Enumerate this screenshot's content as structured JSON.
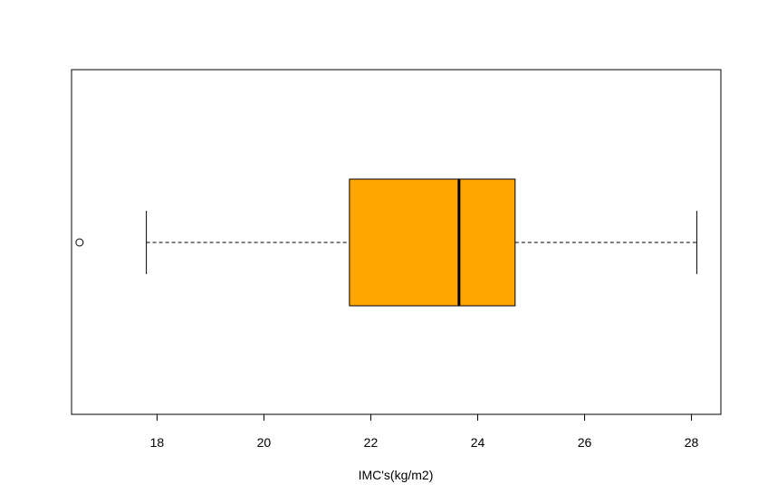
{
  "chart_data": {
    "type": "boxplot",
    "orientation": "horizontal",
    "xlabel": "IMC's(kg/m2)",
    "xlim": [
      16.4,
      28.55
    ],
    "ticks": [
      18,
      20,
      22,
      24,
      26,
      28
    ],
    "tick_labels": [
      "18",
      "20",
      "22",
      "24",
      "26",
      "28"
    ],
    "boxes": [
      {
        "whisker_low": 17.8,
        "q1": 21.6,
        "median": 23.65,
        "q3": 24.7,
        "whisker_high": 28.1,
        "outliers": [
          16.55
        ]
      }
    ],
    "fill_color": "#FFA500",
    "line_color": "#000000",
    "grid": false
  }
}
